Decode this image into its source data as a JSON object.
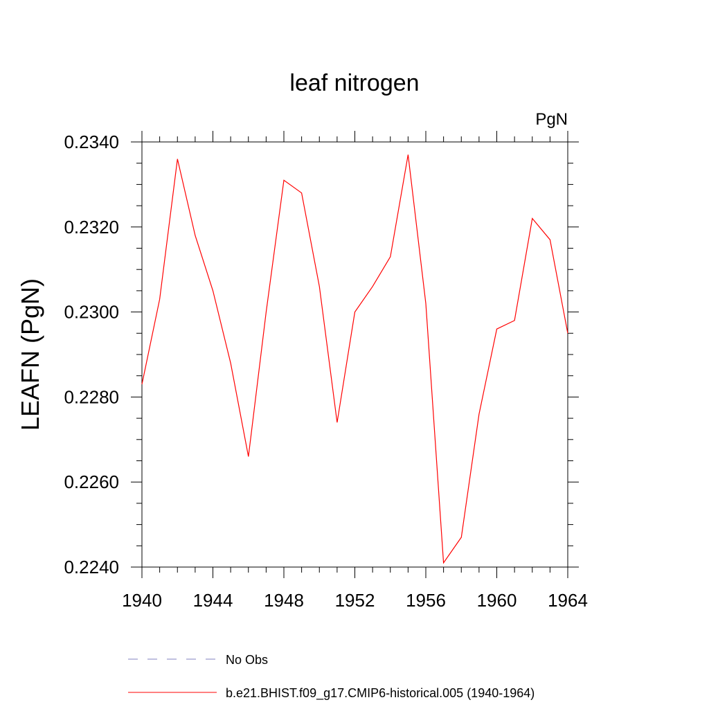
{
  "chart_data": {
    "type": "line",
    "title": "leaf nitrogen",
    "units": "PgN",
    "xlabel": "",
    "ylabel": "LEAFN  (PgN)",
    "xlim": [
      1940,
      1964
    ],
    "ylim": [
      0.224,
      0.234
    ],
    "x_ticks": [
      1940,
      1944,
      1948,
      1952,
      1956,
      1960,
      1964
    ],
    "x_tick_labels": [
      "1940",
      "1944",
      "1948",
      "1952",
      "1956",
      "1960",
      "1964"
    ],
    "y_ticks": [
      0.224,
      0.226,
      0.228,
      0.23,
      0.232,
      0.234
    ],
    "y_tick_labels": [
      "0.2240",
      "0.2260",
      "0.2280",
      "0.2300",
      "0.2320",
      "0.2340"
    ],
    "grid": false,
    "legend_position": "bottom",
    "series": [
      {
        "name": "b.e21.BHIST.f09_g17.CMIP6-historical.005 (1940-1964)",
        "color": "#ff0000",
        "style": "solid",
        "x": [
          1940,
          1941,
          1942,
          1943,
          1944,
          1945,
          1946,
          1947,
          1948,
          1949,
          1950,
          1951,
          1952,
          1953,
          1954,
          1955,
          1956,
          1957,
          1958,
          1959,
          1960,
          1961,
          1962,
          1963,
          1964
        ],
        "y": [
          0.2283,
          0.2303,
          0.2336,
          0.2318,
          0.2305,
          0.2288,
          0.2266,
          0.23,
          0.2331,
          0.2328,
          0.2306,
          0.2274,
          0.23,
          0.2306,
          0.2313,
          0.2337,
          0.2302,
          0.2241,
          0.2247,
          0.2276,
          0.2296,
          0.2298,
          0.2322,
          0.2317,
          0.2295
        ]
      }
    ],
    "legend": [
      {
        "label": "No Obs",
        "color": "#8080c0",
        "style": "dashed"
      },
      {
        "label": "b.e21.BHIST.f09_g17.CMIP6-historical.005 (1940-1964)",
        "color": "#ff0000",
        "style": "solid"
      }
    ]
  }
}
